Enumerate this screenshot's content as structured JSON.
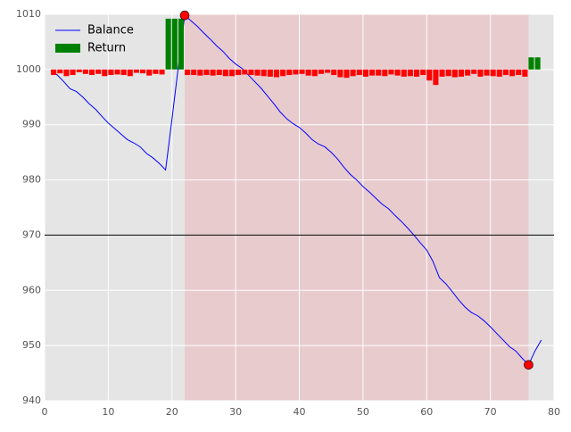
{
  "chart_data": {
    "type": "line",
    "xlim": [
      0,
      80
    ],
    "xticks": [
      0,
      10,
      20,
      30,
      40,
      50,
      60,
      70,
      80
    ],
    "ylim": [
      940,
      1010
    ],
    "yticks": [
      940,
      950,
      960,
      970,
      980,
      990,
      1000,
      1010
    ],
    "grid": true,
    "legend": "upper left",
    "shade": [
      22,
      76
    ],
    "shade_color": "#e8cbcd",
    "background": "#e5e5e5",
    "hline": 970,
    "series": [
      {
        "name": "Balance",
        "color": "#0000ff",
        "x": [
          1,
          2,
          3,
          4,
          5,
          6,
          7,
          8,
          9,
          10,
          11,
          12,
          13,
          14,
          15,
          16,
          17,
          18,
          19,
          20,
          21,
          22,
          23,
          24,
          25,
          26,
          27,
          28,
          29,
          30,
          31,
          32,
          33,
          34,
          35,
          36,
          37,
          38,
          39,
          40,
          41,
          42,
          43,
          44,
          45,
          46,
          47,
          48,
          49,
          50,
          51,
          52,
          53,
          54,
          55,
          56,
          57,
          58,
          59,
          60,
          61,
          62,
          63,
          64,
          65,
          66,
          67,
          68,
          69,
          70,
          71,
          72,
          73,
          74,
          75,
          76,
          77,
          78
        ],
        "values": [
          999.8,
          999,
          997.8,
          996.5,
          996,
          995,
          993.8,
          992.8,
          991.5,
          990.3,
          989.3,
          988.3,
          987.3,
          986.7,
          986,
          984.8,
          984,
          983,
          981.8,
          991,
          1000.5,
          1009.8,
          1008.8,
          1007.8,
          1006.6,
          1005.5,
          1004.3,
          1003.3,
          1002,
          1001,
          1000.2,
          999,
          997.8,
          996.6,
          995.2,
          993.8,
          992.3,
          991.1,
          990.2,
          989.5,
          988.5,
          987.3,
          986.5,
          986,
          985,
          983.8,
          982.3,
          981,
          980,
          978.8,
          977.8,
          976.7,
          975.6,
          974.8,
          973.6,
          972.5,
          971.3,
          970,
          968.6,
          967.3,
          965.2,
          962.3,
          961.2,
          959.8,
          958.3,
          957,
          956,
          955.4,
          954.5,
          953.4,
          952.2,
          951,
          949.8,
          949,
          947.7,
          946.5,
          949,
          951
        ]
      },
      {
        "name": "Return",
        "type": "bar",
        "color": "#008000",
        "color_negative": "#ff0000",
        "base": 1000,
        "x": [
          1,
          2,
          3,
          4,
          5,
          6,
          7,
          8,
          9,
          10,
          11,
          12,
          13,
          14,
          15,
          16,
          17,
          18,
          19,
          20,
          21,
          22,
          23,
          24,
          25,
          26,
          27,
          28,
          29,
          30,
          31,
          32,
          33,
          34,
          35,
          36,
          37,
          38,
          39,
          40,
          41,
          42,
          43,
          44,
          45,
          46,
          47,
          48,
          49,
          50,
          51,
          52,
          53,
          54,
          55,
          56,
          57,
          58,
          59,
          60,
          61,
          62,
          63,
          64,
          65,
          66,
          67,
          68,
          69,
          70,
          71,
          72,
          73,
          74,
          75,
          76,
          77
        ],
        "values": [
          -1,
          -0.7,
          -1.2,
          -1,
          -0.5,
          -0.8,
          -1,
          -0.8,
          -1.2,
          -1,
          -0.9,
          -1,
          -1.2,
          -0.6,
          -0.7,
          -1.1,
          -0.8,
          -0.9,
          9.2,
          9.2,
          9.2,
          -1,
          -1,
          -1.1,
          -1,
          -1.1,
          -1,
          -1.2,
          -1.2,
          -1,
          -0.9,
          -1,
          -1.1,
          -1.2,
          -1.3,
          -1.4,
          -1.2,
          -1,
          -0.9,
          -0.8,
          -1.1,
          -1.2,
          -0.8,
          -0.6,
          -1,
          -1.4,
          -1.5,
          -1.2,
          -1,
          -1.3,
          -1.1,
          -1.1,
          -1.2,
          -0.9,
          -1.1,
          -1.3,
          -1.2,
          -1.3,
          -1,
          -2,
          -2.8,
          -1.3,
          -1.2,
          -1.4,
          -1.3,
          -1.1,
          -0.8,
          -1.3,
          -1.1,
          -1.2,
          -1.3,
          -1,
          -1.2,
          -1,
          -1.3,
          2.2,
          2.2
        ]
      }
    ],
    "markers": {
      "color": "#ff0000",
      "x": [
        22,
        76
      ],
      "y": [
        1009.8,
        946.5
      ]
    }
  }
}
